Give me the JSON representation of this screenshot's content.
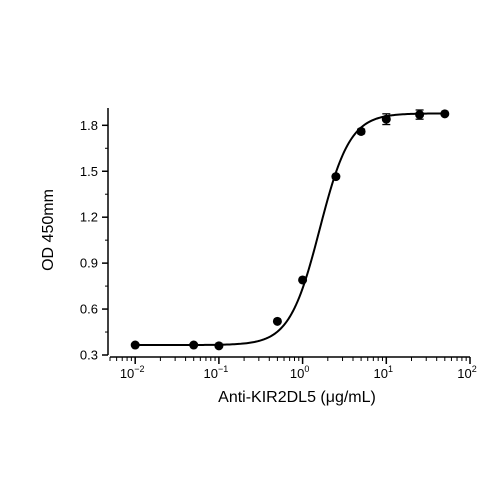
{
  "chart_data": {
    "type": "scatter",
    "title": "",
    "xlabel": "Anti-KIR2DL5 (μg/mL)",
    "ylabel": "OD 450mm",
    "x_scale": "log10",
    "xlim": [
      0.005,
      100
    ],
    "ylim": [
      0.3,
      1.9
    ],
    "x_ticks": [
      {
        "base": "10",
        "exp": "-2",
        "value": 0.01
      },
      {
        "base": "10",
        "exp": "-1",
        "value": 0.1
      },
      {
        "base": "10",
        "exp": "0",
        "value": 1
      },
      {
        "base": "10",
        "exp": "1",
        "value": 10
      },
      {
        "base": "10",
        "exp": "2",
        "value": 100
      }
    ],
    "y_ticks": [
      {
        "label": "0.3",
        "value": 0.3
      },
      {
        "label": "0.6",
        "value": 0.6
      },
      {
        "label": "0.9",
        "value": 0.9
      },
      {
        "label": "1.2",
        "value": 1.2
      },
      {
        "label": "1.5",
        "value": 1.5
      },
      {
        "label": "1.8",
        "value": 1.8
      }
    ],
    "points": [
      {
        "x": 0.01,
        "y": 0.365,
        "err": 0
      },
      {
        "x": 0.05,
        "y": 0.365,
        "err": 0
      },
      {
        "x": 0.1,
        "y": 0.36,
        "err": 0
      },
      {
        "x": 0.5,
        "y": 0.52,
        "err": 0
      },
      {
        "x": 1,
        "y": 0.79,
        "err": 0
      },
      {
        "x": 2.5,
        "y": 1.465,
        "err": 0
      },
      {
        "x": 5,
        "y": 1.76,
        "err": 0.015
      },
      {
        "x": 10,
        "y": 1.84,
        "err": 0.035
      },
      {
        "x": 25,
        "y": 1.87,
        "err": 0.03
      },
      {
        "x": 50,
        "y": 1.875,
        "err": 0
      }
    ],
    "fit": {
      "model": "4PL",
      "bottom": 0.365,
      "top": 1.878,
      "ec50": 1.6,
      "hill": 2.4
    },
    "grid": false,
    "legend": "none",
    "color": "#000000"
  }
}
